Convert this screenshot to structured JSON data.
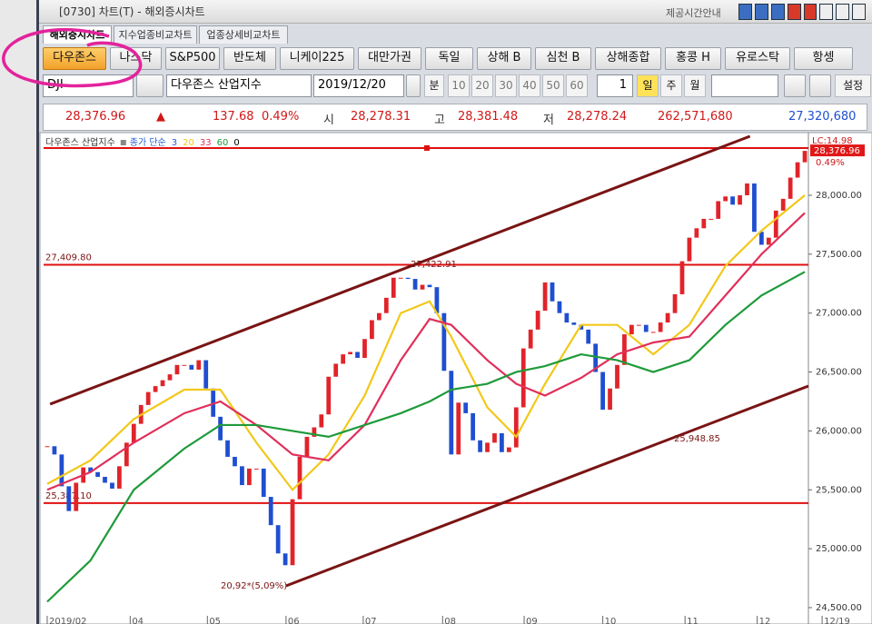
{
  "window": {
    "title": "[0730] 차트(T) - 해외증시차트",
    "info": "제공시간안내"
  },
  "tabs": {
    "items": [
      "해외증시차트",
      "지수업종비교차트",
      "업종상세비교차트"
    ],
    "active": 0
  },
  "markets": {
    "items": [
      "다우존스",
      "나스닥",
      "S&P500",
      "반도체",
      "니케이225",
      "대만가권",
      "독일",
      "상해 B",
      "심천 B",
      "상해종합",
      "홍콩 H",
      "유로스탁",
      "항셍"
    ],
    "active": 0
  },
  "toolbar": {
    "symbol": "DJI",
    "name": "다우존스 산업지수",
    "date": "2019/12/20",
    "minute": "분",
    "minute_options": [
      "10",
      "20",
      "30",
      "40",
      "50",
      "60"
    ],
    "count": "1",
    "periods": [
      "일",
      "주",
      "월"
    ],
    "active_period": 0,
    "settings": "설정"
  },
  "quote": {
    "last": "28,376.96",
    "arrow": "▲",
    "change": "137.68",
    "change_pct": "0.49%",
    "open_label": "시",
    "open": "28,278.31",
    "high_label": "고",
    "high": "28,381.48",
    "low_label": "저",
    "low": "28,278.24",
    "volume": "262,571,680",
    "amount": "27,320,680"
  },
  "chart_data": {
    "type": "candlestick",
    "legend": {
      "title": "다우존스 산업지수",
      "method": "종가 단순",
      "first": {
        "name": "3",
        "color": "#2a5fd0"
      },
      "last": {
        "name": "0",
        "color": "#000000"
      }
    },
    "up_color": "#e0242a",
    "down_color": "#1f4fd0",
    "values": [
      25870,
      25800,
      25530,
      25320,
      25560,
      25690,
      25650,
      25610,
      25560,
      25510,
      25700,
      25900,
      26060,
      26220,
      26330,
      26380,
      26430,
      26480,
      26560,
      26560,
      26520,
      26600,
      26360,
      26120,
      25920,
      25780,
      25700,
      25540,
      25680,
      25680,
      25440,
      25200,
      24960,
      24860,
      25420,
      25780,
      25950,
      26030,
      26140,
      26460,
      26570,
      26650,
      26670,
      26620,
      26780,
      26940,
      27000,
      27130,
      27300,
      27300,
      27290,
      27200,
      27240,
      27220,
      27000,
      26510,
      25800,
      26240,
      26150,
      25920,
      25820,
      25900,
      25980,
      25820,
      25860,
      26200,
      26700,
      26860,
      27020,
      27260,
      27100,
      27000,
      26920,
      26900,
      26860,
      26740,
      26500,
      26180,
      26360,
      26560,
      26820,
      26900,
      26900,
      26840,
      26840,
      26920,
      27000,
      27160,
      27440,
      27640,
      27720,
      27800,
      27800,
      27950,
      27990,
      27920,
      28000,
      28100,
      27690,
      27580,
      27640,
      27870,
      27970,
      28150,
      28280,
      28376.96
    ],
    "series": [
      {
        "name": "20",
        "color": "#f2c81a",
        "x": [
          0,
          6,
          12,
          19,
          24,
          29,
          34,
          39,
          44,
          49,
          53,
          56,
          61,
          65,
          69,
          74,
          79,
          84,
          89,
          94,
          99,
          105
        ],
        "values": [
          25550,
          25750,
          26100,
          26350,
          26350,
          25900,
          25500,
          25800,
          26300,
          27000,
          27100,
          26800,
          26200,
          25950,
          26400,
          26900,
          26900,
          26650,
          26900,
          27400,
          27700,
          28000
        ]
      },
      {
        "name": "33",
        "color": "#e0305a",
        "x": [
          0,
          6,
          12,
          19,
          24,
          29,
          34,
          39,
          44,
          49,
          53,
          56,
          61,
          65,
          69,
          74,
          79,
          84,
          89,
          94,
          99,
          105
        ],
        "values": [
          25500,
          25650,
          25900,
          26150,
          26250,
          26050,
          25800,
          25750,
          26050,
          26600,
          26950,
          26900,
          26600,
          26400,
          26300,
          26450,
          26650,
          26750,
          26800,
          27150,
          27500,
          27850
        ]
      },
      {
        "name": "60",
        "color": "#1f9a3a",
        "x": [
          0,
          6,
          12,
          19,
          24,
          29,
          34,
          39,
          44,
          49,
          53,
          56,
          61,
          65,
          69,
          74,
          79,
          84,
          89,
          94,
          99,
          105
        ],
        "values": [
          24550,
          24900,
          25500,
          25850,
          26050,
          26050,
          26000,
          25950,
          26050,
          26150,
          26250,
          26350,
          26400,
          26500,
          26550,
          26650,
          26600,
          26500,
          26600,
          26900,
          27150,
          27350
        ]
      }
    ],
    "trendlines": [
      {
        "x": [
          0.4,
          97.4
        ],
        "values": [
          26227,
          28501
        ]
      },
      {
        "x": [
          33.1,
          105.5
        ],
        "values": [
          24685,
          26381
        ]
      }
    ],
    "trend_color": "#7a1414",
    "hlines": [
      {
        "value": 27409.8,
        "label": "27,409.80"
      },
      {
        "value": 25387.1,
        "label": "25,387.10"
      },
      {
        "value": 28401
      }
    ],
    "hline_color": "#e01010",
    "annotations": [
      "27,422.91",
      "25,948.85",
      "20,92*(5,09%)"
    ],
    "last_tag": "28,376.96",
    "lc": "LC:14.98",
    "pct": "0.49%",
    "xlim": [
      -0.5,
      105.5
    ],
    "xticks": [
      {
        "value": 0,
        "label": "2019/02"
      },
      {
        "value": 11.5,
        "label": "04"
      },
      {
        "value": 22.2,
        "label": "05"
      },
      {
        "value": 33.1,
        "label": "06"
      },
      {
        "value": 43.8,
        "label": "07"
      },
      {
        "value": 54.8,
        "label": "08"
      },
      {
        "value": 66.1,
        "label": "09"
      },
      {
        "value": 77,
        "label": "10"
      },
      {
        "value": 88.4,
        "label": "11"
      },
      {
        "value": 98.4,
        "label": "12"
      },
      {
        "value": 107.4,
        "label": "12/19"
      }
    ],
    "ylim": [
      24415,
      28501
    ],
    "yticks": [
      {
        "value": 24500,
        "label": "24,500.00"
      },
      {
        "value": 25000,
        "label": "25,000.00"
      },
      {
        "value": 25500,
        "label": "25,500.00"
      },
      {
        "value": 26000,
        "label": "26,000.00"
      },
      {
        "value": 26500,
        "label": "26,500.00"
      },
      {
        "value": 27000,
        "label": "27,000.00"
      },
      {
        "value": 27500,
        "label": "27,500.00"
      },
      {
        "value": 28000,
        "label": "28,000.00"
      }
    ]
  }
}
